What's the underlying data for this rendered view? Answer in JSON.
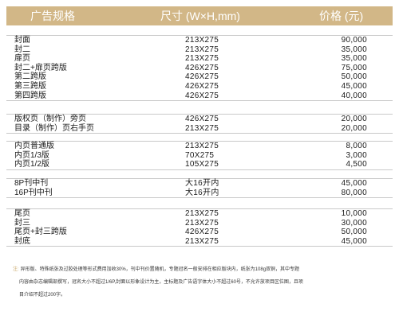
{
  "header": {
    "category": "广告规格",
    "size": "尺寸 (W×H,mm)",
    "price": "价格 (元)"
  },
  "groups": [
    [
      {
        "name": "封面",
        "size": "213X275",
        "price": "90,000"
      },
      {
        "name": "封二",
        "size": "213X275",
        "price": "35,000"
      },
      {
        "name": "扉页",
        "size": "213X275",
        "price": "35,000"
      },
      {
        "name": "封二+扉页跨版",
        "size": "426X275",
        "price": "75,000"
      },
      {
        "name": "第二跨版",
        "size": "426X275",
        "price": "50,000"
      },
      {
        "name": "第三跨版",
        "size": "426X275",
        "price": "45,000"
      },
      {
        "name": "第四跨版",
        "size": "426X275",
        "price": "40,000"
      }
    ],
    [
      {
        "name": "版权页（制作）旁页",
        "size": "426X275",
        "price": "20,000"
      },
      {
        "name": "目录（制作）页右手页",
        "size": "213X275",
        "price": "20,000"
      }
    ],
    [
      {
        "name": "内页普通版",
        "size": "213X275",
        "price": "8,000"
      },
      {
        "name": "内页1/3版",
        "size": "70X275",
        "price": "3,000"
      },
      {
        "name": "内页1/2版",
        "size": "105X275",
        "price": "4,500"
      }
    ],
    [
      {
        "name": "8P刊中刊",
        "size": "大16开内",
        "price": "45,000"
      },
      {
        "name": "16P刊中刊",
        "size": "大16开内",
        "price": "80,000"
      }
    ],
    [
      {
        "name": "尾页",
        "size": "213X275",
        "price": "10,000"
      },
      {
        "name": "封三",
        "size": "213X275",
        "price": "30,000"
      },
      {
        "name": "尾页+封三跨版",
        "size": "426X275",
        "price": "50,000"
      },
      {
        "name": "封底",
        "size": "213X275",
        "price": "45,000"
      }
    ]
  ],
  "note": {
    "mark": "注:",
    "lines": [
      "异形版、特殊纸张及过胶处理等形式费用加收30%，刊中刊价置随机，专题冠名一般安排在相应版块内，纸张为108g双铜，其中专题",
      "内容由杂志编辑部撰写，冠名大小不超过1/6P,封面以形象设计为主，主标题及广告语字体大小不超过60号，不允许放项目区位图，且项",
      "目介绍不超过200字。"
    ]
  }
}
